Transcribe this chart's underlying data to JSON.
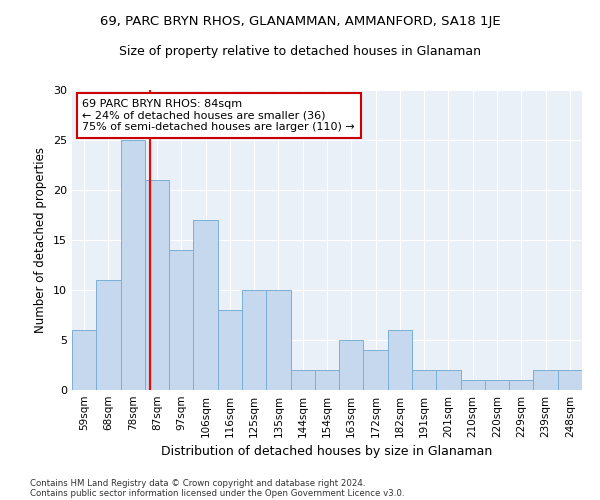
{
  "title": "69, PARC BRYN RHOS, GLANAMMAN, AMMANFORD, SA18 1JE",
  "subtitle": "Size of property relative to detached houses in Glanaman",
  "xlabel": "Distribution of detached houses by size in Glanaman",
  "ylabel": "Number of detached properties",
  "categories": [
    "59sqm",
    "68sqm",
    "78sqm",
    "87sqm",
    "97sqm",
    "106sqm",
    "116sqm",
    "125sqm",
    "135sqm",
    "144sqm",
    "154sqm",
    "163sqm",
    "172sqm",
    "182sqm",
    "191sqm",
    "201sqm",
    "210sqm",
    "220sqm",
    "229sqm",
    "239sqm",
    "248sqm"
  ],
  "values": [
    6,
    11,
    25,
    21,
    14,
    17,
    8,
    10,
    10,
    2,
    2,
    5,
    4,
    6,
    2,
    2,
    1,
    1,
    1,
    2,
    2
  ],
  "bar_color": "#c5d8ed",
  "bar_edge_color": "#7aafd4",
  "background_color": "#eaf0f8",
  "annotation_text": "69 PARC BRYN RHOS: 84sqm\n← 24% of detached houses are smaller (36)\n75% of semi-detached houses are larger (110) →",
  "annotation_box_color": "#ffffff",
  "annotation_box_edge": "#cc0000",
  "red_line_x": 2.72,
  "ylim": [
    0,
    30
  ],
  "yticks": [
    0,
    5,
    10,
    15,
    20,
    25,
    30
  ],
  "footer1": "Contains HM Land Registry data © Crown copyright and database right 2024.",
  "footer2": "Contains public sector information licensed under the Open Government Licence v3.0."
}
